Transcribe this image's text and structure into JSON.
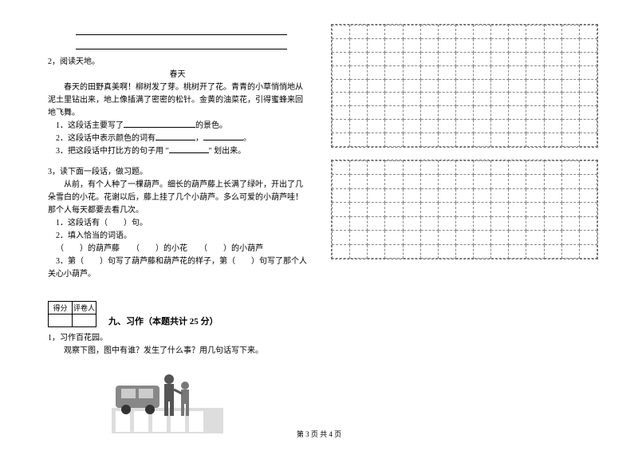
{
  "left": {
    "q2": {
      "num": "2，",
      "title": "阅读天地。",
      "subtitle": "春天",
      "body": "春天的田野真美啊！柳树发了芽。桃树开了花。青青的小草悄悄地从泥土里钻出来，地上像插满了密密的松针。金黄的油菜花，引得蜜蜂来回地飞舞。",
      "s1pre": "1．这段话主要写了",
      "s1post": "的景色。",
      "s2pre": "2．这段话中表示颜色的词有",
      "s2mid": "，",
      "s2end": "。",
      "s3pre": "3．把这段话中打比方的句子用 \"",
      "s3post": "\" 划出来。"
    },
    "q3": {
      "num": "3，",
      "title": "读下面一段话，做习题。",
      "body": "从前，有个人种了一棵葫芦。细长的葫芦藤上长满了绿叶，开出了几朵雪白的小花。花谢以后，藤上挂了几个小葫芦。多么可爱的小葫芦哇！那个人每天都要去看几次。",
      "s1": "1．这段话有（　　）句。",
      "s2": "2．填入恰当的词语。",
      "s2line": "（　　）的葫芦藤　　（　　）的小花　　（　　）的小葫芦",
      "s3": "3．第（　　）句写了葫芦藤和葫芦花的样子，第（　　）句写了那个人关心小葫芦。"
    },
    "scoreHeaders": {
      "a": "得分",
      "b": "评卷人"
    },
    "section9": "九、习作（本题共计 25 分）",
    "q1_writing": {
      "num": "1，",
      "title": "习作百花园。",
      "body": "观察下图，图中有谁？发生了什么事？用几句话写下来。"
    },
    "footer": "第 3 页 共 4 页"
  },
  "style": {
    "blank_short": 90,
    "blank_med": 60,
    "blank_sm": 50,
    "grid_cols": 15,
    "grid1_rows": 9,
    "grid2_rows": 7
  }
}
